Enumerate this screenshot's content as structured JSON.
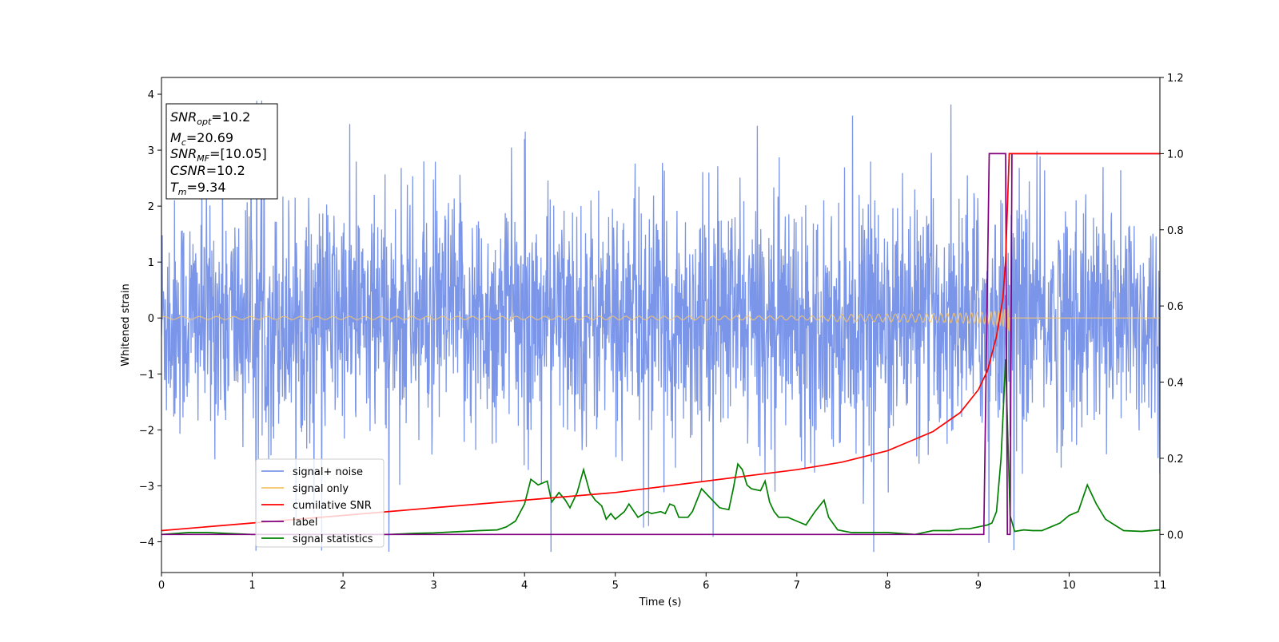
{
  "chart_data": {
    "type": "line",
    "xlabel": "Time (s)",
    "ylabel": "Whitened strain",
    "xlim": [
      0,
      11
    ],
    "ylim_left": [
      -4.55,
      4.3
    ],
    "ylim_right": [
      -0.1,
      1.2
    ],
    "x_ticks": [
      "0",
      "1",
      "2",
      "3",
      "4",
      "5",
      "6",
      "7",
      "8",
      "9",
      "10",
      "11"
    ],
    "y_left_ticks": [
      "4",
      "3",
      "2",
      "1",
      "0",
      "−1",
      "−2",
      "−3",
      "−4"
    ],
    "y_right_ticks": [
      "1.2",
      "1.0",
      "0.8",
      "0.6",
      "0.4",
      "0.2",
      "0.0"
    ],
    "grid": false,
    "legend_position": "lower-left",
    "info_box": {
      "snr_opt": "=10.2",
      "mc": "=20.69",
      "snr_mf": "=[10.05]",
      "csnr": "=10.2",
      "tm": "=9.34"
    },
    "series": [
      {
        "name": "signal+ noise",
        "color": "#7b96e8",
        "axis": "left",
        "description_values": "whitened noise, amplitude ~±2.5 with spikes to ±3.9"
      },
      {
        "name": "signal only",
        "color": "#f5c46c",
        "axis": "left",
        "chirp_end_time": 9.34,
        "chirp_peak_amplitude": 0.9
      },
      {
        "name": "cumilative SNR",
        "color": "#ff0000",
        "axis": "right",
        "x": [
          0,
          1,
          2,
          3,
          4,
          5,
          6,
          7,
          7.5,
          8,
          8.5,
          8.8,
          9.0,
          9.1,
          9.2,
          9.27,
          9.3,
          9.34,
          11
        ],
        "y": [
          0.01,
          0.03,
          0.05,
          0.07,
          0.09,
          0.11,
          0.14,
          0.17,
          0.19,
          0.22,
          0.27,
          0.32,
          0.38,
          0.43,
          0.52,
          0.62,
          0.72,
          1.0,
          1.0
        ]
      },
      {
        "name": "label",
        "color": "#800080",
        "axis": "right",
        "x": [
          0,
          9.06,
          9.12,
          9.3,
          9.32,
          9.35,
          9.37,
          11
        ],
        "y": [
          0,
          0,
          1,
          1,
          0,
          0,
          1,
          1
        ]
      },
      {
        "name": "signal statistics",
        "color": "#008000",
        "axis": "right",
        "x": [
          0,
          0.3,
          0.5,
          0.8,
          1.0,
          1.5,
          2.0,
          2.5,
          2.8,
          3.0,
          3.5,
          3.7,
          3.8,
          3.9,
          4.0,
          4.07,
          4.15,
          4.25,
          4.3,
          4.38,
          4.45,
          4.5,
          4.58,
          4.65,
          4.72,
          4.78,
          4.85,
          4.9,
          4.95,
          5.0,
          5.1,
          5.15,
          5.25,
          5.35,
          5.4,
          5.5,
          5.55,
          5.6,
          5.65,
          5.7,
          5.8,
          5.85,
          5.95,
          6.05,
          6.15,
          6.25,
          6.3,
          6.35,
          6.4,
          6.45,
          6.5,
          6.6,
          6.65,
          6.7,
          6.75,
          6.8,
          6.9,
          7.0,
          7.1,
          7.2,
          7.3,
          7.35,
          7.45,
          7.6,
          8.0,
          8.3,
          8.5,
          8.7,
          8.8,
          8.9,
          9.0,
          9.1,
          9.15,
          9.2,
          9.25,
          9.3,
          9.35,
          9.4,
          9.5,
          9.6,
          9.7,
          9.8,
          9.9,
          10.0,
          10.1,
          10.2,
          10.3,
          10.4,
          10.5,
          10.6,
          10.8,
          11.0
        ],
        "y": [
          0,
          0.005,
          0.005,
          0.002,
          0.0,
          0.0,
          0.0,
          0.0,
          0.003,
          0.004,
          0.01,
          0.012,
          0.02,
          0.035,
          0.08,
          0.145,
          0.13,
          0.14,
          0.085,
          0.11,
          0.09,
          0.07,
          0.11,
          0.17,
          0.11,
          0.09,
          0.075,
          0.04,
          0.055,
          0.04,
          0.06,
          0.08,
          0.045,
          0.06,
          0.055,
          0.06,
          0.055,
          0.08,
          0.075,
          0.045,
          0.045,
          0.06,
          0.12,
          0.095,
          0.07,
          0.065,
          0.12,
          0.185,
          0.17,
          0.13,
          0.12,
          0.115,
          0.14,
          0.085,
          0.06,
          0.045,
          0.045,
          0.035,
          0.025,
          0.06,
          0.09,
          0.045,
          0.012,
          0.005,
          0.005,
          0.0,
          0.01,
          0.01,
          0.015,
          0.015,
          0.02,
          0.025,
          0.03,
          0.06,
          0.2,
          0.46,
          0.05,
          0.008,
          0.012,
          0.01,
          0.01,
          0.02,
          0.03,
          0.05,
          0.06,
          0.13,
          0.08,
          0.04,
          0.025,
          0.01,
          0.008,
          0.012
        ]
      }
    ]
  }
}
